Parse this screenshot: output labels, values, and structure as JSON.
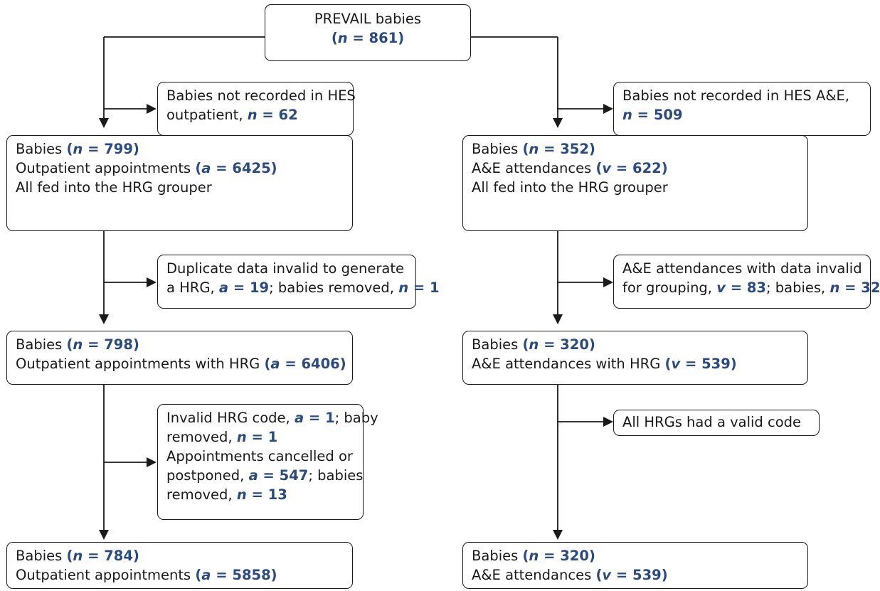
{
  "root": {
    "title": "PREVAIL babies",
    "n_open": "(",
    "n_var": "n",
    "eq": " = ",
    "n_val": "861",
    "close": ")"
  },
  "left": {
    "excl1": {
      "l1": "Babies not recorded in HES",
      "l2a": "outpatient, ",
      "l2v": "n",
      "l2eq": " = ",
      "l2n": "62"
    },
    "stage1": {
      "l1a": "Babies ",
      "l1o": "(",
      "l1v": "n",
      "l1eq": " = ",
      "l1n": "799",
      "l1c": ")",
      "l2a": "Outpatient appointments ",
      "l2o": "(",
      "l2v": "a",
      "l2eq": " = ",
      "l2n": "6425",
      "l2c": ")",
      "l3": "All fed into the HRG grouper"
    },
    "excl2": {
      "l1": "Duplicate data invalid to generate",
      "l2a": "a HRG, ",
      "l2v1": "a",
      "l2eq1": " = ",
      "l2n1": "19",
      "l2b": "; babies removed, ",
      "l2v2": "n",
      "l2eq2": " = ",
      "l2n2": "1"
    },
    "stage2": {
      "l1a": "Babies ",
      "l1o": "(",
      "l1v": "n",
      "l1eq": " = ",
      "l1n": "798",
      "l1c": ")",
      "l2a": "Outpatient appointments with HRG ",
      "l2o": "(",
      "l2v": "a",
      "l2eq": " = ",
      "l2n": "6406",
      "l2c": ")"
    },
    "excl3": {
      "l1a": "Invalid HRG code, ",
      "l1v1": "a",
      "l1eq1": " = ",
      "l1n1": "1",
      "l1b": "; baby",
      "l2a": "removed, ",
      "l2v": "n",
      "l2eq": " = ",
      "l2n": "1",
      "l3": "Appointments cancelled or",
      "l4a": "postponed, ",
      "l4v": "a",
      "l4eq": " = ",
      "l4n": "547",
      "l4b": "; babies",
      "l5a": "removed, ",
      "l5v": "n",
      "l5eq": " = ",
      "l5n": "13"
    },
    "stage3": {
      "l1a": "Babies ",
      "l1o": "(",
      "l1v": "n",
      "l1eq": " = ",
      "l1n": "784",
      "l1c": ")",
      "l2a": "Outpatient appointments ",
      "l2o": "(",
      "l2v": "a",
      "l2eq": " = ",
      "l2n": "5858",
      "l2c": ")"
    }
  },
  "right": {
    "excl1": {
      "l1": "Babies not recorded in HES A&E,",
      "l2v": "n",
      "l2eq": " = ",
      "l2n": "509"
    },
    "stage1": {
      "l1a": "Babies ",
      "l1o": "(",
      "l1v": "n",
      "l1eq": " = ",
      "l1n": "352",
      "l1c": ")",
      "l2a": "A&E attendances ",
      "l2o": "(",
      "l2v": "v",
      "l2eq": " = ",
      "l2n": "622",
      "l2c": ")",
      "l3": "All fed into the HRG grouper"
    },
    "excl2": {
      "l1": "A&E attendances with data invalid",
      "l2a": "for grouping, ",
      "l2v1": "v",
      "l2eq1": " = ",
      "l2n1": "83",
      "l2b": "; babies, ",
      "l2v2": "n",
      "l2eq2": " = ",
      "l2n2": "32"
    },
    "stage2": {
      "l1a": "Babies ",
      "l1o": "(",
      "l1v": "n",
      "l1eq": " = ",
      "l1n": "320",
      "l1c": ")",
      "l2a": "A&E attendances with HRG ",
      "l2o": "(",
      "l2v": "v",
      "l2eq": " = ",
      "l2n": "539",
      "l2c": ")"
    },
    "excl3": {
      "l1": "All HRGs had a valid code"
    },
    "stage3": {
      "l1a": "Babies ",
      "l1o": "(",
      "l1v": "n",
      "l1eq": " = ",
      "l1n": "320",
      "l1c": ")",
      "l2a": "A&E attendances ",
      "l2o": "(",
      "l2v": "v",
      "l2eq": " = ",
      "l2n": "539",
      "l2c": ")"
    }
  },
  "colors": {
    "highlight": "#2a4a80",
    "line": "#1a1a1a"
  }
}
